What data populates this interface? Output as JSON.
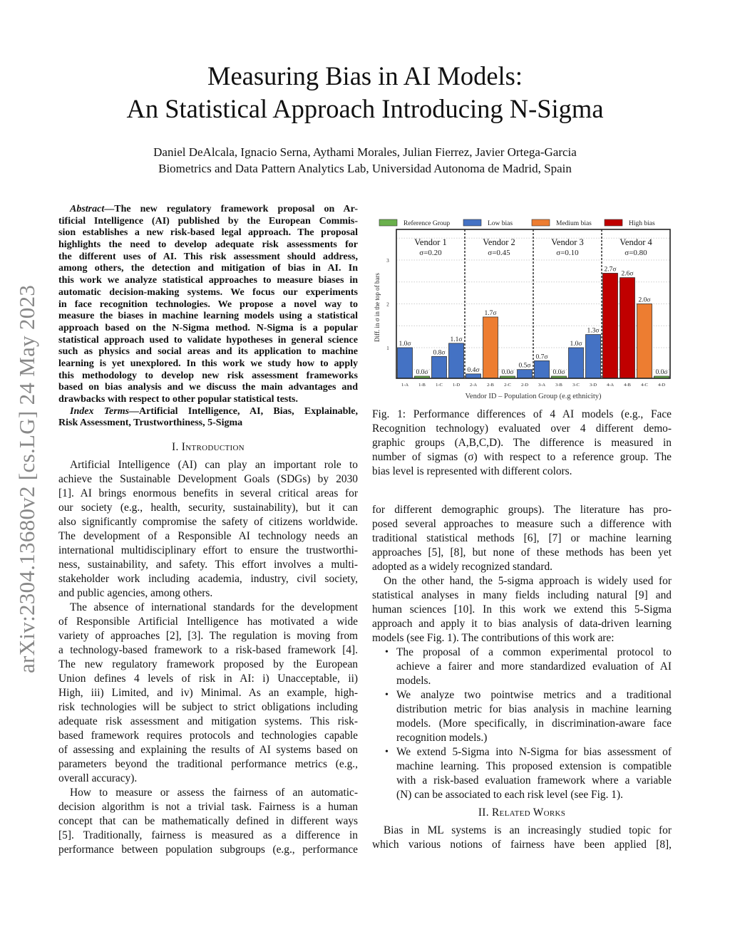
{
  "title": [
    "Measuring Bias in AI Models:",
    "An Statistical Approach Introducing N-Sigma"
  ],
  "authors": [
    "Daniel DeAlcala, Ignacio Serna, Aythami Morales, Julian Fierrez, Javier Ortega-Garcia",
    "Biometrics and Data Pattern Analytics Lab, Universidad Autonoma de Madrid, Spain"
  ],
  "arxiv_id": "arXiv:2304.13680v2  [cs.LG]  24 May 2023",
  "abstract": {
    "label": "Abstract",
    "lines": [
      "—The new regulatory framework proposal on Ar-",
      "tificial Intelligence (AI) published by the European Commis-",
      "sion establishes a new risk-based legal approach. The proposal",
      "highlights the need to develop adequate risk assessments for",
      "the different uses of AI. This risk assessment should address,",
      "among others, the detection and mitigation of bias in AI. In",
      "this work we analyze statistical approaches to measure biases in",
      "automatic decision-making systems. We focus our experiments",
      "in face recognition technologies. We propose a novel way to",
      "measure the biases in machine learning models using a statistical",
      "approach based on the N-Sigma method. N-Sigma is a popular",
      "statistical approach used to validate hypotheses in general science",
      "such as physics and social areas and its application to machine",
      "learning is yet unexplored. In this work we study how to apply",
      "this methodology to develop new risk assessment frameworks",
      "based on bias analysis and we discuss the main advantages and",
      "drawbacks with respect to other popular statistical tests."
    ],
    "index_label": "Index Terms",
    "index_lines": [
      "—Artificial Intelligence, AI, Bias, Explainable,",
      "Risk Assessment, Trustworthiness, 5-Sigma"
    ]
  },
  "intro": {
    "heading": "I. Introduction",
    "p1": [
      "Artificial Intelligence (AI) can play an important role to",
      "achieve the Sustainable Development Goals (SDGs) by 2030",
      "[1]. AI brings enormous benefits in several critical areas for",
      "our society (e.g., health, security, sustainability), but it can",
      "also significantly compromise the safety of citizens worldwide.",
      "The development of a Responsible AI technology needs an",
      "international multidisciplinary effort to ensure the trustworthi-",
      "ness, sustainability, and safety. This effort involves a multi-",
      "stakeholder work including academia, industry, civil society,",
      "and public agencies, among others."
    ],
    "p2": [
      "The absence of international standards for the development",
      "of Responsible Artificial Intelligence has motivated a wide",
      "variety of approaches [2], [3]. The regulation is moving from",
      "a technology-based framework to a risk-based framework [4].",
      "The new regulatory framework proposed by the European",
      "Union defines 4 levels of risk in AI: i) Unacceptable, ii)",
      "High, iii) Limited, and iv) Minimal. As an example, high-",
      "risk technologies will be subject to strict obligations including",
      "adequate risk assessment and mitigation systems. This risk-",
      "based framework requires protocols and technologies capable",
      "of assessing and explaining the results of AI systems based on",
      "parameters beyond the traditional performance metrics (e.g.,",
      "overall accuracy)."
    ],
    "p3": [
      "How to measure or assess the fairness of an automatic-",
      "decision algorithm is not a trivial task. Fairness is a human",
      "concept that can be mathematically defined in different ways",
      "[5]. Traditionally, fairness is measured as a difference in",
      "performance between population subgroups (e.g., performance"
    ]
  },
  "figure": {
    "caption": [
      "Fig. 1: Performance differences of 4 AI models (e.g., Face",
      "Recognition technology) evaluated over 4 different demo-",
      "graphic groups (A,B,C,D). The difference is measured in",
      "number of sigmas (σ) with respect to a reference group. The",
      "bias level is represented with different colors."
    ]
  },
  "right": {
    "p1": [
      "for different demographic groups). The literature has pro-",
      "posed several approaches to measure such a difference with",
      "traditional statistical methods [6], [7] or machine learning",
      "approaches [5], [8], but none of these methods has been yet",
      "adopted as a widely recognized standard."
    ],
    "p2": [
      "On the other hand, the 5-sigma approach is widely used for",
      "statistical analyses in many fields including natural [9] and",
      "human sciences [10]. In this work we extend this 5-Sigma",
      "approach and apply it to bias analysis of data-driven learning",
      "models (see Fig. 1). The contributions of this work are:"
    ],
    "bullets": [
      [
        "The proposal of a common experimental protocol to",
        "achieve a fairer and more standardized evaluation of AI",
        "models."
      ],
      [
        "We analyze two pointwise metrics and a traditional",
        "distribution metric for bias analysis in machine learning",
        "models. (More specifically, in discrimination-aware face",
        "recognition models.)"
      ],
      [
        "We extend 5-Sigma into N-Sigma for bias assessment of",
        "machine learning. This proposed extension is compatible",
        "with a risk-based evaluation framework where a variable",
        "(N) can be associated to each risk level (see Fig. 1)."
      ]
    ],
    "heading2": "II. Related Works",
    "p3": [
      "Bias in ML systems is an increasingly studied topic for",
      "which various notions of fairness have been applied [8],"
    ]
  },
  "chart_data": {
    "type": "bar",
    "xlabel": "Vendor ID – Population Group (e.g ethnicity)",
    "ylabel": "Diff. in σ in the top of bars",
    "ylim": [
      0.3,
      3.7
    ],
    "yticks": [
      "1",
      "2",
      "3"
    ],
    "ytick_values": [
      1,
      2,
      3
    ],
    "grid": "horizontal dotted",
    "legend_position": "top",
    "legend": [
      {
        "key": "ref",
        "name": "Reference Group",
        "color": "#6ab04c"
      },
      {
        "key": "low",
        "name": "Low bias",
        "color": "#4472c4"
      },
      {
        "key": "med",
        "name": "Medium bias",
        "color": "#ed7d31"
      },
      {
        "key": "high",
        "name": "High bias",
        "color": "#c00000"
      }
    ],
    "vendors": [
      {
        "name": "Vendor 1",
        "sigma": "σ=0.20"
      },
      {
        "name": "Vendor 2",
        "sigma": "σ=0.45"
      },
      {
        "name": "Vendor 3",
        "sigma": "σ=0.10"
      },
      {
        "name": "Vendor 4",
        "sigma": "σ=0.80"
      }
    ],
    "categories": [
      "1-A",
      "1-B",
      "1-C",
      "1-D",
      "2-A",
      "2-B",
      "2-C",
      "2-D",
      "3-A",
      "3-B",
      "3-C",
      "3-D",
      "4-A",
      "4-B",
      "4-C",
      "4-D"
    ],
    "values": [
      1.0,
      0.0,
      0.8,
      1.1,
      0.4,
      1.7,
      0.0,
      0.5,
      0.7,
      0.0,
      1.0,
      1.3,
      2.7,
      2.6,
      2.0,
      0.0
    ],
    "labels": [
      "1.0σ",
      "0.0σ",
      "0.8σ",
      "1.1σ",
      "0.4σ",
      "1.7σ",
      "0.0σ",
      "0.5σ",
      "0.7σ",
      "0.0σ",
      "1.0σ",
      "1.3σ",
      "2.7σ",
      "2.6σ",
      "2.0σ",
      "0.0σ"
    ],
    "bias_level": [
      "low",
      "ref",
      "low",
      "low",
      "low",
      "med",
      "ref",
      "low",
      "low",
      "ref",
      "low",
      "low",
      "high",
      "high",
      "med",
      "ref"
    ]
  }
}
